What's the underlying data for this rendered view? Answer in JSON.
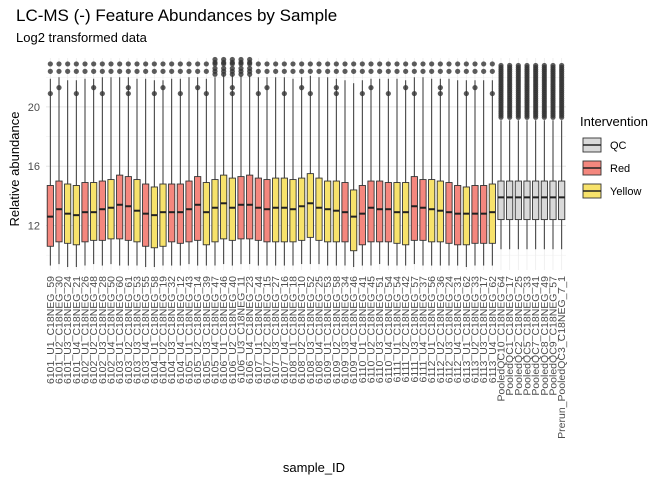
{
  "chart_data": {
    "type": "boxplot",
    "title": "LC-MS (-) Feature Abundances by Sample",
    "subtitle": "Log2 transformed data",
    "xlabel": "sample_ID",
    "ylabel": "Relative abundance",
    "ylim": [
      9,
      23.3
    ],
    "yticks": [
      12,
      16,
      20
    ],
    "grid": true,
    "legend": {
      "title": "Intervention",
      "position": "right",
      "entries": [
        {
          "name": "QC",
          "color": "#d9d9d9"
        },
        {
          "name": "Red",
          "color": "#f4877e"
        },
        {
          "name": "Yellow",
          "color": "#f7e26b"
        }
      ]
    },
    "samples": [
      {
        "id": "6101_U1_C18NEG_59",
        "group": "Red",
        "q1": 10.6,
        "median": 12.6,
        "q3": 14.7,
        "lo": 9.3,
        "hi": 21.9
      },
      {
        "id": "6101_U2_C18NEG_30",
        "group": "Red",
        "q1": 10.9,
        "median": 13.1,
        "q3": 15.0,
        "lo": 9.4,
        "hi": 22.0
      },
      {
        "id": "6101_U3_C18NEG_24",
        "group": "Yellow",
        "q1": 10.8,
        "median": 12.8,
        "q3": 14.8,
        "lo": 9.2,
        "hi": 21.8
      },
      {
        "id": "6101_U4_C18NEG_21",
        "group": "Yellow",
        "q1": 10.7,
        "median": 12.7,
        "q3": 14.7,
        "lo": 9.2,
        "hi": 21.8
      },
      {
        "id": "6102_U1_C18NEG_26",
        "group": "Red",
        "q1": 10.9,
        "median": 12.9,
        "q3": 14.9,
        "lo": 9.3,
        "hi": 21.9
      },
      {
        "id": "6102_U2_C18NEG_48",
        "group": "Yellow",
        "q1": 11.0,
        "median": 12.9,
        "q3": 14.9,
        "lo": 9.4,
        "hi": 21.9
      },
      {
        "id": "6102_U3_C18NEG_28",
        "group": "Red",
        "q1": 11.0,
        "median": 13.1,
        "q3": 15.0,
        "lo": 9.3,
        "hi": 22.0
      },
      {
        "id": "6102_U4_C18NEG_50",
        "group": "Yellow",
        "q1": 11.1,
        "median": 13.2,
        "q3": 15.1,
        "lo": 9.4,
        "hi": 22.0
      },
      {
        "id": "6103_U1_C18NEG_60",
        "group": "Red",
        "q1": 11.1,
        "median": 13.4,
        "q3": 15.4,
        "lo": 9.3,
        "hi": 22.0
      },
      {
        "id": "6103_U2_C18NEG_61",
        "group": "Red",
        "q1": 11.0,
        "median": 13.3,
        "q3": 15.3,
        "lo": 9.3,
        "hi": 22.0
      },
      {
        "id": "6103_U3_C18NEG_53",
        "group": "Yellow",
        "q1": 10.9,
        "median": 13.0,
        "q3": 15.1,
        "lo": 9.3,
        "hi": 21.9
      },
      {
        "id": "6103_U4_C18NEG_55",
        "group": "Red",
        "q1": 10.6,
        "median": 12.8,
        "q3": 14.8,
        "lo": 9.2,
        "hi": 21.9
      },
      {
        "id": "6104_U1_C18NEG_58",
        "group": "Yellow",
        "q1": 10.5,
        "median": 12.7,
        "q3": 14.6,
        "lo": 9.2,
        "hi": 21.8
      },
      {
        "id": "6104_U2_C18NEG_19",
        "group": "Yellow",
        "q1": 10.6,
        "median": 12.9,
        "q3": 14.8,
        "lo": 9.3,
        "hi": 21.8
      },
      {
        "id": "6104_U3_C18NEG_32",
        "group": "Red",
        "q1": 10.9,
        "median": 12.9,
        "q3": 14.8,
        "lo": 9.3,
        "hi": 21.9
      },
      {
        "id": "6104_U4_C18NEG_12",
        "group": "Red",
        "q1": 10.8,
        "median": 12.9,
        "q3": 14.8,
        "lo": 9.3,
        "hi": 21.9
      },
      {
        "id": "6105_U1_C18NEG_43",
        "group": "Red",
        "q1": 10.9,
        "median": 13.1,
        "q3": 15.0,
        "lo": 9.4,
        "hi": 22.0
      },
      {
        "id": "6105_U2_C18NEG_14",
        "group": "Red",
        "q1": 11.0,
        "median": 13.4,
        "q3": 15.3,
        "lo": 9.3,
        "hi": 22.0
      },
      {
        "id": "6105_U3_C18NEG_39",
        "group": "Yellow",
        "q1": 10.7,
        "median": 12.9,
        "q3": 14.9,
        "lo": 9.3,
        "hi": 21.9
      },
      {
        "id": "6105_U4_C18NEG_47",
        "group": "Yellow",
        "q1": 10.9,
        "median": 13.2,
        "q3": 15.1,
        "lo": 9.3,
        "hi": 22.0
      },
      {
        "id": "6106_U1_C18NEG_46",
        "group": "Yellow",
        "q1": 11.1,
        "median": 13.5,
        "q3": 15.4,
        "lo": 9.4,
        "hi": 22.2
      },
      {
        "id": "6106_U2_C18NEG_40",
        "group": "Yellow",
        "q1": 11.0,
        "median": 13.2,
        "q3": 15.2,
        "lo": 9.3,
        "hi": 22.2
      },
      {
        "id": "6106_U3_C18NEG_11",
        "group": "Red",
        "q1": 11.1,
        "median": 13.4,
        "q3": 15.3,
        "lo": 9.4,
        "hi": 22.1
      },
      {
        "id": "6106_U4_C18NEG_23",
        "group": "Red",
        "q1": 11.1,
        "median": 13.4,
        "q3": 15.4,
        "lo": 9.4,
        "hi": 22.1
      },
      {
        "id": "6107_U1_C18NEG_44",
        "group": "Red",
        "q1": 11.0,
        "median": 13.2,
        "q3": 15.2,
        "lo": 9.3,
        "hi": 22.0
      },
      {
        "id": "6107_U2_C18NEG_15",
        "group": "Red",
        "q1": 10.9,
        "median": 13.1,
        "q3": 15.1,
        "lo": 9.3,
        "hi": 22.0
      },
      {
        "id": "6107_U3_C18NEG_27",
        "group": "Yellow",
        "q1": 10.9,
        "median": 13.2,
        "q3": 15.2,
        "lo": 9.3,
        "hi": 22.0
      },
      {
        "id": "6107_U4_C18NEG_16",
        "group": "Yellow",
        "q1": 10.9,
        "median": 13.2,
        "q3": 15.2,
        "lo": 9.3,
        "hi": 22.0
      },
      {
        "id": "6108_U1_C18NEG_18",
        "group": "Yellow",
        "q1": 10.9,
        "median": 13.1,
        "q3": 15.1,
        "lo": 9.3,
        "hi": 21.9
      },
      {
        "id": "6108_U2_C18NEG_10",
        "group": "Yellow",
        "q1": 11.0,
        "median": 13.3,
        "q3": 15.2,
        "lo": 9.4,
        "hi": 22.0
      },
      {
        "id": "6108_U3_C18NEG_52",
        "group": "Yellow",
        "q1": 11.2,
        "median": 13.5,
        "q3": 15.5,
        "lo": 9.4,
        "hi": 22.1
      },
      {
        "id": "6108_U4_C18NEG_25",
        "group": "Yellow",
        "q1": 11.0,
        "median": 13.2,
        "q3": 15.2,
        "lo": 9.4,
        "hi": 22.0
      },
      {
        "id": "6109_U1_C18NEG_53",
        "group": "Yellow",
        "q1": 10.9,
        "median": 13.1,
        "q3": 15.0,
        "lo": 9.3,
        "hi": 22.0
      },
      {
        "id": "6109_U2_C18NEG_58",
        "group": "Yellow",
        "q1": 10.9,
        "median": 13.0,
        "q3": 15.0,
        "lo": 9.3,
        "hi": 21.9
      },
      {
        "id": "6109_U3_C18NEG_34",
        "group": "Red",
        "q1": 10.9,
        "median": 12.9,
        "q3": 14.9,
        "lo": 9.3,
        "hi": 21.8
      },
      {
        "id": "6109_U4_C18NEG_46",
        "group": "Yellow",
        "q1": 10.3,
        "median": 12.6,
        "q3": 14.4,
        "lo": 9.2,
        "hi": 21.6
      },
      {
        "id": "6110_U1_C18NEG_41",
        "group": "Red",
        "q1": 10.7,
        "median": 12.8,
        "q3": 14.7,
        "lo": 9.3,
        "hi": 21.8
      },
      {
        "id": "6110_U2_C18NEG_45",
        "group": "Red",
        "q1": 10.9,
        "median": 13.2,
        "q3": 15.0,
        "lo": 9.3,
        "hi": 21.9
      },
      {
        "id": "6110_U3_C18NEG_51",
        "group": "Red",
        "q1": 10.9,
        "median": 13.1,
        "q3": 15.0,
        "lo": 9.4,
        "hi": 21.9
      },
      {
        "id": "6110_U4_C18NEG_54",
        "group": "Red",
        "q1": 10.9,
        "median": 13.1,
        "q3": 14.9,
        "lo": 9.3,
        "hi": 21.9
      },
      {
        "id": "6111_U1_C18NEG_54",
        "group": "Yellow",
        "q1": 10.8,
        "median": 12.9,
        "q3": 14.9,
        "lo": 9.3,
        "hi": 21.9
      },
      {
        "id": "6111_U2_C18NEG_42",
        "group": "Yellow",
        "q1": 10.7,
        "median": 12.9,
        "q3": 14.9,
        "lo": 9.3,
        "hi": 21.8
      },
      {
        "id": "6111_U3_C18NEG_57",
        "group": "Red",
        "q1": 11.0,
        "median": 13.3,
        "q3": 15.3,
        "lo": 9.4,
        "hi": 22.0
      },
      {
        "id": "6111_U4_C18NEG_37",
        "group": "Red",
        "q1": 11.0,
        "median": 13.2,
        "q3": 15.1,
        "lo": 9.3,
        "hi": 22.0
      },
      {
        "id": "6112_U1_C18NEG_56",
        "group": "Yellow",
        "q1": 10.9,
        "median": 13.1,
        "q3": 15.1,
        "lo": 9.3,
        "hi": 21.9
      },
      {
        "id": "6112_U2_C18NEG_36",
        "group": "Yellow",
        "q1": 10.9,
        "median": 13.0,
        "q3": 15.0,
        "lo": 9.3,
        "hi": 21.9
      },
      {
        "id": "6112_U3_C18NEG_24",
        "group": "Red",
        "q1": 10.8,
        "median": 12.9,
        "q3": 14.9,
        "lo": 9.3,
        "hi": 21.9
      },
      {
        "id": "6112_U4_C18NEG_31",
        "group": "Red",
        "q1": 10.7,
        "median": 12.8,
        "q3": 14.7,
        "lo": 9.3,
        "hi": 21.8
      },
      {
        "id": "6113_U1_C18NEG_62",
        "group": "Yellow",
        "q1": 10.7,
        "median": 12.8,
        "q3": 14.6,
        "lo": 9.2,
        "hi": 21.8
      },
      {
        "id": "6113_U2_C18NEG_33",
        "group": "Red",
        "q1": 10.8,
        "median": 12.8,
        "q3": 14.7,
        "lo": 9.3,
        "hi": 21.8
      },
      {
        "id": "6113_U3_C18NEG_17",
        "group": "Red",
        "q1": 10.8,
        "median": 12.8,
        "q3": 14.7,
        "lo": 9.3,
        "hi": 21.8
      },
      {
        "id": "6113_U4_C18NEG_62",
        "group": "Yellow",
        "q1": 10.8,
        "median": 12.9,
        "q3": 14.8,
        "lo": 9.3,
        "hi": 21.8
      },
      {
        "id": "PooledQC10_C18NEG_64",
        "group": "QC",
        "q1": 12.4,
        "median": 13.9,
        "q3": 15.0,
        "lo": 10.4,
        "hi": 19.1
      },
      {
        "id": "PooledQC1_C18NEG_17",
        "group": "QC",
        "q1": 12.4,
        "median": 13.9,
        "q3": 15.0,
        "lo": 10.4,
        "hi": 19.1
      },
      {
        "id": "PooledQC2_C18NEG_25",
        "group": "QC",
        "q1": 12.4,
        "median": 13.9,
        "q3": 15.0,
        "lo": 10.4,
        "hi": 19.1
      },
      {
        "id": "PooledQC5_C18NEG_33",
        "group": "QC",
        "q1": 12.4,
        "median": 13.9,
        "q3": 15.0,
        "lo": 10.4,
        "hi": 19.1
      },
      {
        "id": "PooledQC7_C18NEG_41",
        "group": "QC",
        "q1": 12.4,
        "median": 13.9,
        "q3": 15.0,
        "lo": 10.4,
        "hi": 19.1
      },
      {
        "id": "PooledQC8_C18NEG_49",
        "group": "QC",
        "q1": 12.4,
        "median": 13.9,
        "q3": 15.0,
        "lo": 10.4,
        "hi": 19.1
      },
      {
        "id": "PooledQC9_C18NEG_57",
        "group": "QC",
        "q1": 12.4,
        "median": 13.9,
        "q3": 15.0,
        "lo": 10.4,
        "hi": 19.1
      },
      {
        "id": "Prerun_PooledQC3_C18NEG_7_1",
        "group": "QC",
        "q1": 12.4,
        "median": 13.9,
        "q3": 15.0,
        "lo": 10.4,
        "hi": 19.1
      }
    ]
  }
}
